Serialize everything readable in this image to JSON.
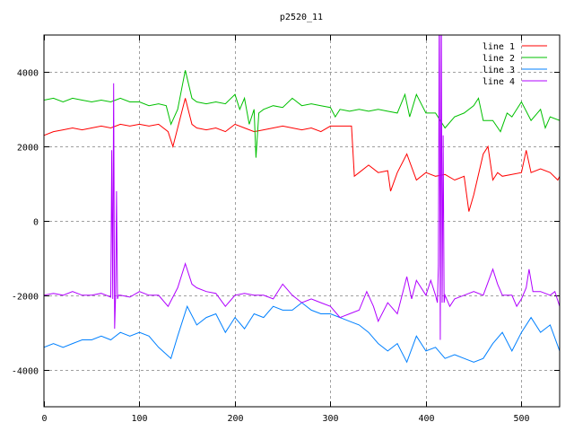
{
  "chart_data": {
    "type": "line",
    "title": "p2520_11",
    "xlabel": "",
    "ylabel": "",
    "xlim": [
      0,
      540
    ],
    "ylim": [
      -5000,
      5000
    ],
    "xticks": [
      0,
      100,
      200,
      300,
      400,
      500
    ],
    "yticks": [
      -4000,
      -2000,
      0,
      2000,
      4000
    ],
    "grid": true,
    "legend_position": "top-right",
    "series": [
      {
        "name": "line 1",
        "color": "#ff0000",
        "x": [
          0,
          10,
          20,
          30,
          40,
          50,
          60,
          70,
          80,
          90,
          100,
          110,
          120,
          130,
          135,
          140,
          148,
          155,
          160,
          170,
          180,
          190,
          200,
          210,
          220,
          230,
          240,
          250,
          260,
          270,
          280,
          290,
          300,
          310,
          320,
          322,
          325,
          330,
          340,
          350,
          360,
          363,
          370,
          380,
          390,
          400,
          410,
          420,
          430,
          440,
          445,
          450,
          460,
          465,
          470,
          475,
          480,
          490,
          500,
          505,
          510,
          520,
          530,
          538,
          540
        ],
        "y": [
          2300,
          2400,
          2450,
          2500,
          2450,
          2500,
          2550,
          2500,
          2600,
          2550,
          2600,
          2550,
          2600,
          2400,
          2000,
          2500,
          3300,
          2600,
          2500,
          2450,
          2500,
          2400,
          2600,
          2500,
          2400,
          2450,
          2500,
          2550,
          2500,
          2450,
          2500,
          2400,
          2550,
          2550,
          2550,
          2550,
          1200,
          1300,
          1500,
          1300,
          1350,
          800,
          1300,
          1800,
          1100,
          1300,
          1200,
          1250,
          1100,
          1200,
          250,
          700,
          1800,
          2000,
          1100,
          1300,
          1200,
          1250,
          1300,
          1900,
          1300,
          1400,
          1300,
          1100,
          1200
        ]
      },
      {
        "name": "line 2",
        "color": "#00c000",
        "x": [
          0,
          10,
          20,
          30,
          40,
          50,
          60,
          70,
          80,
          90,
          100,
          110,
          120,
          128,
          133,
          140,
          148,
          155,
          160,
          170,
          180,
          190,
          200,
          205,
          210,
          215,
          220,
          222,
          225,
          230,
          240,
          250,
          260,
          270,
          280,
          290,
          300,
          305,
          310,
          320,
          330,
          340,
          350,
          360,
          370,
          378,
          383,
          390,
          400,
          410,
          420,
          430,
          440,
          450,
          455,
          460,
          470,
          478,
          485,
          490,
          500,
          510,
          520,
          525,
          530,
          540
        ],
        "y": [
          3250,
          3300,
          3200,
          3300,
          3250,
          3200,
          3250,
          3200,
          3300,
          3200,
          3200,
          3100,
          3150,
          3100,
          2600,
          3000,
          4050,
          3300,
          3200,
          3150,
          3200,
          3150,
          3400,
          3000,
          3300,
          2600,
          3000,
          1700,
          2900,
          3000,
          3100,
          3050,
          3300,
          3100,
          3150,
          3100,
          3050,
          2800,
          3000,
          2950,
          3000,
          2950,
          3000,
          2950,
          2900,
          3400,
          2800,
          3400,
          2900,
          2900,
          2500,
          2800,
          2900,
          3100,
          3300,
          2700,
          2700,
          2400,
          2900,
          2800,
          3200,
          2700,
          3000,
          2500,
          2800,
          2700
        ]
      },
      {
        "name": "line 3",
        "color": "#0080ff",
        "x": [
          0,
          10,
          20,
          30,
          40,
          50,
          60,
          70,
          80,
          90,
          100,
          110,
          120,
          133,
          140,
          150,
          160,
          170,
          180,
          190,
          200,
          210,
          220,
          230,
          240,
          250,
          260,
          270,
          280,
          290,
          300,
          310,
          320,
          330,
          340,
          350,
          360,
          370,
          380,
          390,
          400,
          410,
          420,
          430,
          440,
          450,
          460,
          470,
          480,
          490,
          500,
          510,
          520,
          530,
          540
        ],
        "y": [
          -3400,
          -3300,
          -3400,
          -3300,
          -3200,
          -3200,
          -3100,
          -3200,
          -3000,
          -3100,
          -3000,
          -3100,
          -3400,
          -3700,
          -3100,
          -2300,
          -2800,
          -2600,
          -2500,
          -3000,
          -2600,
          -2900,
          -2500,
          -2600,
          -2300,
          -2400,
          -2400,
          -2200,
          -2400,
          -2500,
          -2500,
          -2600,
          -2700,
          -2800,
          -3000,
          -3300,
          -3500,
          -3300,
          -3800,
          -3100,
          -3500,
          -3400,
          -3700,
          -3600,
          -3700,
          -3800,
          -3700,
          -3300,
          -3000,
          -3500,
          -3000,
          -2600,
          -3000,
          -2800,
          -3500
        ]
      },
      {
        "name": "line 4",
        "color": "#b000ff",
        "x": [
          0,
          10,
          20,
          30,
          40,
          50,
          60,
          70,
          71,
          72,
          73,
          74,
          75,
          76,
          77,
          78,
          80,
          90,
          100,
          110,
          120,
          130,
          140,
          148,
          155,
          160,
          170,
          180,
          190,
          200,
          210,
          220,
          230,
          240,
          250,
          260,
          270,
          280,
          290,
          300,
          310,
          320,
          330,
          338,
          345,
          350,
          360,
          370,
          380,
          385,
          390,
          400,
          405,
          410,
          412,
          413,
          414,
          415,
          416,
          417,
          418,
          419,
          420,
          425,
          430,
          440,
          450,
          460,
          470,
          475,
          480,
          490,
          495,
          500,
          505,
          508,
          512,
          520,
          530,
          535,
          540
        ],
        "y": [
          -2000,
          -1950,
          -2000,
          -1900,
          -2000,
          -2000,
          -1950,
          -2050,
          1900,
          -2100,
          3700,
          -2900,
          -2000,
          800,
          -2100,
          -2000,
          -2000,
          -2050,
          -1900,
          -2000,
          -2000,
          -2300,
          -1800,
          -1150,
          -1700,
          -1800,
          -1900,
          -1950,
          -2300,
          -2000,
          -1950,
          -2000,
          -2000,
          -2100,
          -1700,
          -2000,
          -2200,
          -2100,
          -2200,
          -2300,
          -2600,
          -2500,
          -2400,
          -1900,
          -2300,
          -2700,
          -2200,
          -2500,
          -1500,
          -2100,
          -1600,
          -2000,
          -1600,
          -2000,
          -2200,
          -1200,
          6000,
          -3200,
          6000,
          -2200,
          2300,
          -2200,
          -2000,
          -2300,
          -2100,
          -2000,
          -1900,
          -2000,
          -1300,
          -1700,
          -2000,
          -2000,
          -2300,
          -2100,
          -1800,
          -1300,
          -1900,
          -1900,
          -2000,
          -1900,
          -2300
        ]
      }
    ]
  }
}
